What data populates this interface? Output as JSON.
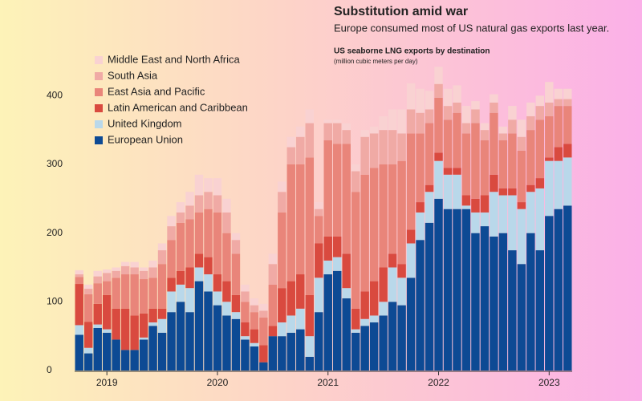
{
  "chart_data": {
    "type": "bar",
    "stacked": true,
    "title": "Substitution amid war",
    "subtitle": "Europe consumed most of US natural gas exports last year.",
    "chart_title": "US seaborne LNG exports by destination",
    "units": "(million cubic meters per day)",
    "categories": [
      null,
      null,
      null,
      "2019",
      null,
      null,
      null,
      null,
      null,
      null,
      null,
      null,
      null,
      null,
      null,
      "2020",
      null,
      null,
      null,
      null,
      null,
      null,
      null,
      null,
      null,
      null,
      null,
      "2021",
      null,
      null,
      null,
      null,
      null,
      null,
      null,
      null,
      null,
      null,
      null,
      "2022",
      null,
      null,
      null,
      null,
      null,
      null,
      null,
      null,
      null,
      null,
      null,
      "2023",
      null,
      null
    ],
    "series": [
      {
        "name": "European Union",
        "color": "#0d4a94",
        "values": [
          52,
          25,
          62,
          55,
          45,
          30,
          30,
          45,
          65,
          55,
          85,
          100,
          85,
          130,
          115,
          95,
          80,
          75,
          45,
          35,
          12,
          50,
          50,
          55,
          60,
          20,
          85,
          140,
          145,
          105,
          55,
          65,
          70,
          80,
          100,
          95,
          135,
          190,
          215,
          250,
          235,
          235,
          235,
          200,
          210,
          195,
          200,
          175,
          155,
          200,
          175,
          225,
          235,
          240
        ]
      },
      {
        "name": "United Kingdom",
        "color": "#b9d8ea",
        "values": [
          14,
          8,
          5,
          5,
          0,
          0,
          0,
          3,
          5,
          20,
          30,
          25,
          35,
          20,
          25,
          20,
          20,
          10,
          5,
          5,
          0,
          0,
          20,
          25,
          30,
          30,
          50,
          20,
          20,
          15,
          5,
          10,
          10,
          20,
          50,
          40,
          50,
          40,
          45,
          55,
          50,
          50,
          5,
          30,
          20,
          65,
          55,
          80,
          80,
          60,
          90,
          80,
          70,
          70
        ]
      },
      {
        "name": "Latin American and Caribbean",
        "color": "#d94a3f",
        "values": [
          60,
          38,
          30,
          50,
          45,
          60,
          50,
          35,
          20,
          15,
          20,
          20,
          30,
          20,
          25,
          25,
          30,
          25,
          20,
          20,
          25,
          15,
          50,
          50,
          50,
          60,
          50,
          35,
          30,
          50,
          30,
          40,
          50,
          50,
          20,
          20,
          20,
          15,
          10,
          12,
          10,
          10,
          15,
          20,
          25,
          25,
          10,
          10,
          10,
          10,
          15,
          5,
          20,
          20
        ]
      },
      {
        "name": "East Asia and Pacific",
        "color": "#e9857a",
        "values": [
          10,
          40,
          30,
          20,
          45,
          50,
          60,
          50,
          45,
          65,
          55,
          70,
          70,
          60,
          70,
          90,
          70,
          60,
          30,
          25,
          40,
          60,
          110,
          170,
          160,
          200,
          40,
          140,
          135,
          160,
          170,
          170,
          165,
          150,
          130,
          150,
          140,
          100,
          90,
          80,
          70,
          80,
          90,
          110,
          80,
          90,
          70,
          80,
          75,
          80,
          85,
          60,
          60,
          55
        ]
      },
      {
        "name": "South Asia",
        "color": "#f0aaa5",
        "values": [
          4,
          8,
          10,
          12,
          10,
          12,
          10,
          12,
          15,
          20,
          20,
          15,
          20,
          25,
          25,
          25,
          30,
          20,
          15,
          10,
          10,
          30,
          30,
          25,
          40,
          50,
          10,
          25,
          30,
          20,
          30,
          55,
          50,
          50,
          50,
          40,
          35,
          30,
          20,
          20,
          20,
          15,
          15,
          20,
          15,
          15,
          10,
          20,
          20,
          20,
          20,
          20,
          10,
          10
        ]
      },
      {
        "name": "Middle East and North Africa",
        "color": "#f9d2d2",
        "values": [
          6,
          6,
          8,
          5,
          5,
          6,
          8,
          5,
          10,
          10,
          15,
          15,
          20,
          30,
          20,
          25,
          20,
          10,
          10,
          10,
          10,
          15,
          15,
          15,
          15,
          20,
          10,
          5,
          5,
          10,
          10,
          10,
          10,
          20,
          30,
          35,
          38,
          35,
          27,
          25,
          25,
          25,
          25,
          12,
          10,
          12,
          10,
          20,
          25,
          20,
          15,
          30,
          15,
          15
        ]
      }
    ],
    "ylim": [
      0,
      440
    ],
    "yticks": [
      0,
      100,
      200,
      300,
      400
    ],
    "grid": false,
    "legend": "top-left"
  }
}
